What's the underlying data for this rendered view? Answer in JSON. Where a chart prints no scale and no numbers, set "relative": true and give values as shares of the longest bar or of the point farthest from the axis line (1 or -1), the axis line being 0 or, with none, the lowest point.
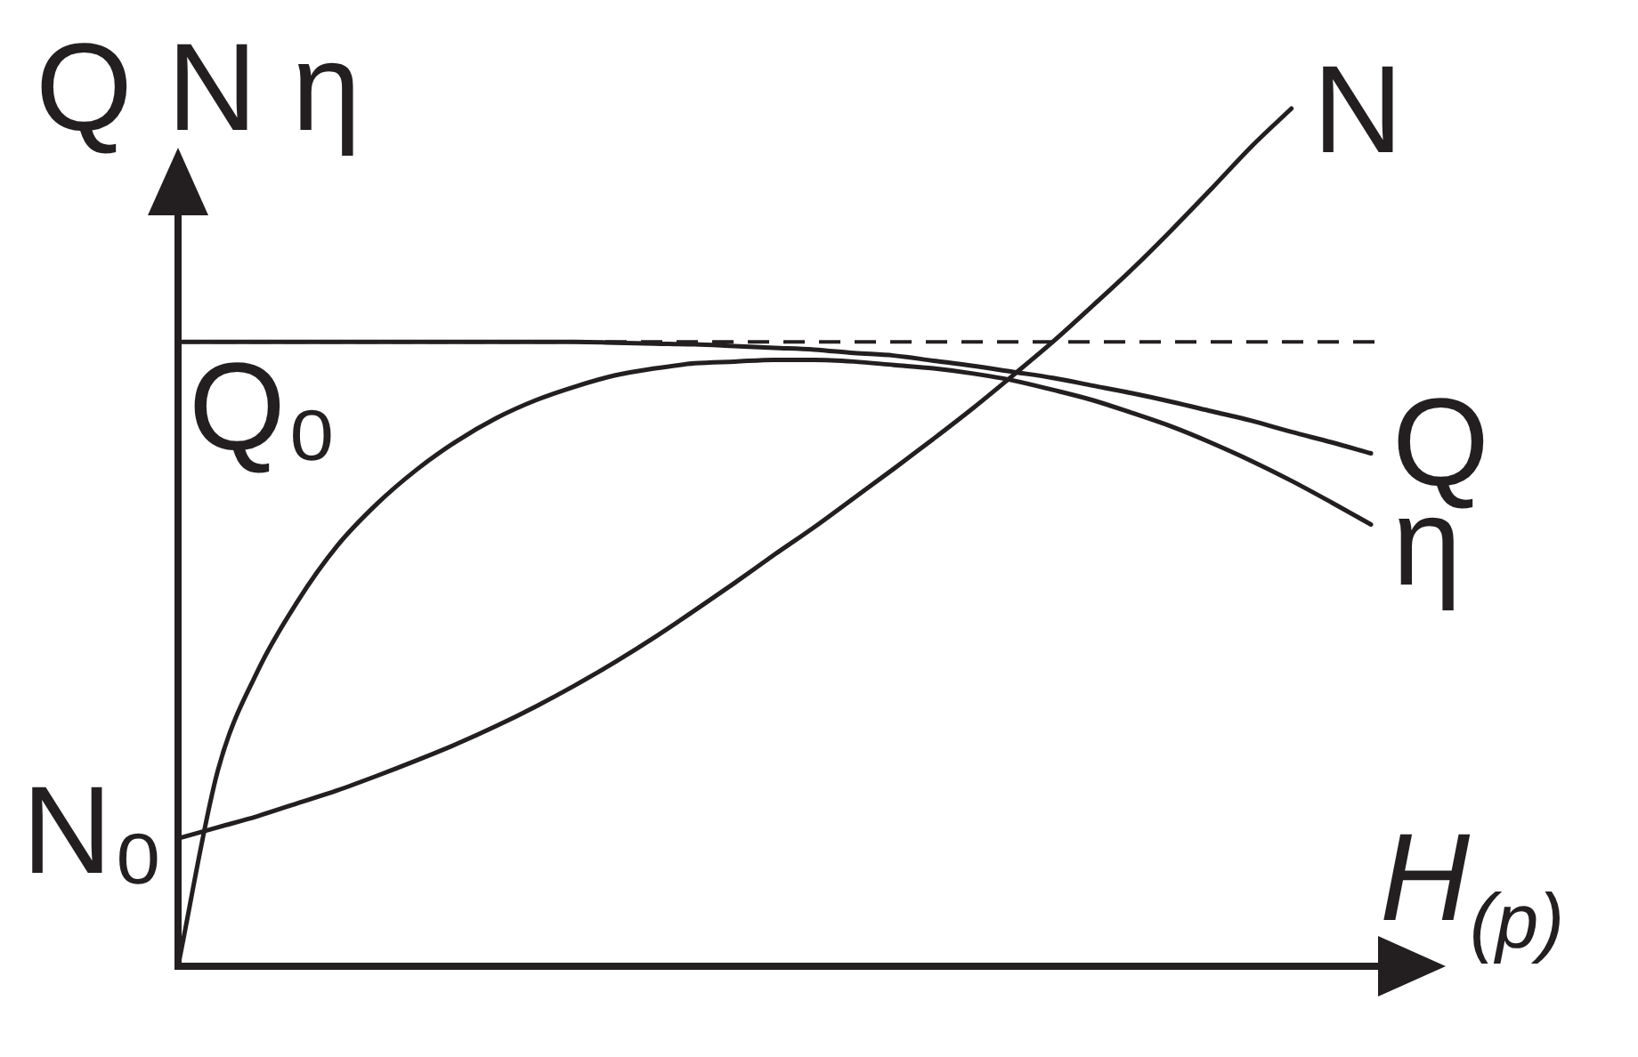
{
  "chart_data": {
    "type": "line",
    "relative": true,
    "xlabel": "H$_{(p)}$",
    "ylabel": "Q N η",
    "marker": "none",
    "categories": [
      null,
      null,
      null,
      null,
      null,
      null,
      null,
      null,
      null,
      null,
      null,
      null,
      null,
      null,
      null,
      null,
      null,
      null,
      null,
      null,
      null,
      null,
      null,
      null,
      null,
      null,
      null,
      null,
      null,
      null,
      null
    ],
    "series": [
      {
        "name": "Q",
        "color": "#231f20",
        "values": [
          0.728,
          0.728,
          0.728,
          0.728,
          0.728,
          0.728,
          0.728,
          0.728,
          0.728,
          0.728,
          0.728,
          0.727,
          0.726,
          0.725,
          0.723,
          0.721,
          0.719,
          0.715,
          0.712,
          0.706,
          0.7,
          0.693,
          0.686,
          0.677,
          0.668,
          0.658,
          0.647,
          0.636,
          0.623,
          0.611,
          0.598
        ]
      },
      {
        "name": "η",
        "color": "#231f20",
        "values": [
          0,
          0.228,
          0.344,
          0.425,
          0.49,
          0.539,
          0.579,
          0.612,
          0.639,
          0.66,
          0.676,
          0.689,
          0.697,
          0.703,
          0.705,
          0.707,
          0.707,
          0.705,
          0.701,
          0.697,
          0.691,
          0.683,
          0.672,
          0.66,
          0.645,
          0.629,
          0.61,
          0.589,
          0.566,
          0.541,
          0.515
        ]
      },
      {
        "name": "N",
        "color": "#231f20",
        "values": [
          0.149,
          0.162,
          0.175,
          0.19,
          0.205,
          0.222,
          0.24,
          0.259,
          0.28,
          0.303,
          0.328,
          0.355,
          0.384,
          0.415,
          0.447,
          0.48,
          0.512,
          0.546,
          0.58,
          0.615,
          0.651,
          0.689,
          0.728,
          0.77,
          0.813,
          0.859,
          0.907,
          0.956,
          1,
          null,
          null
        ]
      }
    ],
    "ref_lines": [
      {
        "axis": "y",
        "value": 0.728,
        "label": "Q₀",
        "color": "#231f20",
        "line_style": "dashed"
      }
    ],
    "annotations": [
      "N₀"
    ]
  }
}
